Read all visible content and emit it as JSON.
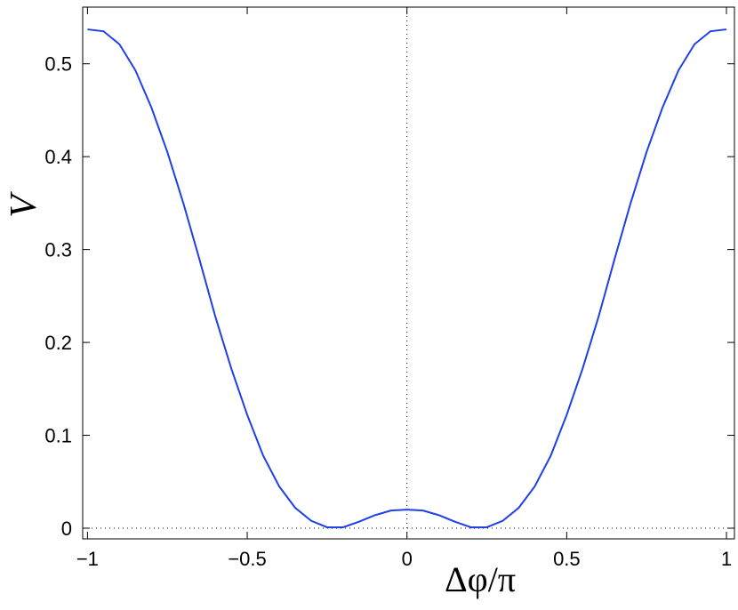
{
  "chart_data": {
    "type": "line",
    "xlabel": "Δφ/π",
    "ylabel": "V",
    "x": [
      -1,
      -0.95,
      -0.9,
      -0.85,
      -0.8,
      -0.75,
      -0.7,
      -0.65,
      -0.6,
      -0.55,
      -0.5,
      -0.45,
      -0.4,
      -0.35,
      -0.3,
      -0.25,
      -0.2,
      -0.15,
      -0.1,
      -0.05,
      0,
      0.05,
      0.1,
      0.15,
      0.2,
      0.25,
      0.3,
      0.35,
      0.4,
      0.45,
      0.5,
      0.55,
      0.6,
      0.65,
      0.7,
      0.75,
      0.8,
      0.85,
      0.9,
      0.95,
      1
    ],
    "series": [
      {
        "color": "#1f3fe8",
        "values": [
          0.537,
          0.535,
          0.521,
          0.493,
          0.453,
          0.405,
          0.35,
          0.29,
          0.228,
          0.172,
          0.122,
          0.078,
          0.045,
          0.022,
          0.008,
          0.001,
          0.001,
          0.007,
          0.014,
          0.019,
          0.02,
          0.019,
          0.014,
          0.007,
          0.001,
          0.001,
          0.008,
          0.022,
          0.045,
          0.078,
          0.122,
          0.172,
          0.228,
          0.29,
          0.35,
          0.405,
          0.453,
          0.493,
          0.521,
          0.535,
          0.537
        ]
      }
    ],
    "xlim": [
      -1.015,
      1.025
    ],
    "ylim": [
      -0.0115,
      0.561
    ],
    "xticks": [
      {
        "value": -1,
        "label": "−1"
      },
      {
        "value": -0.5,
        "label": "−0.5"
      },
      0,
      0.5,
      1
    ],
    "yticks": [
      0,
      0.1,
      0.2,
      0.3,
      0.4,
      0.5
    ],
    "zero_lines": true
  }
}
